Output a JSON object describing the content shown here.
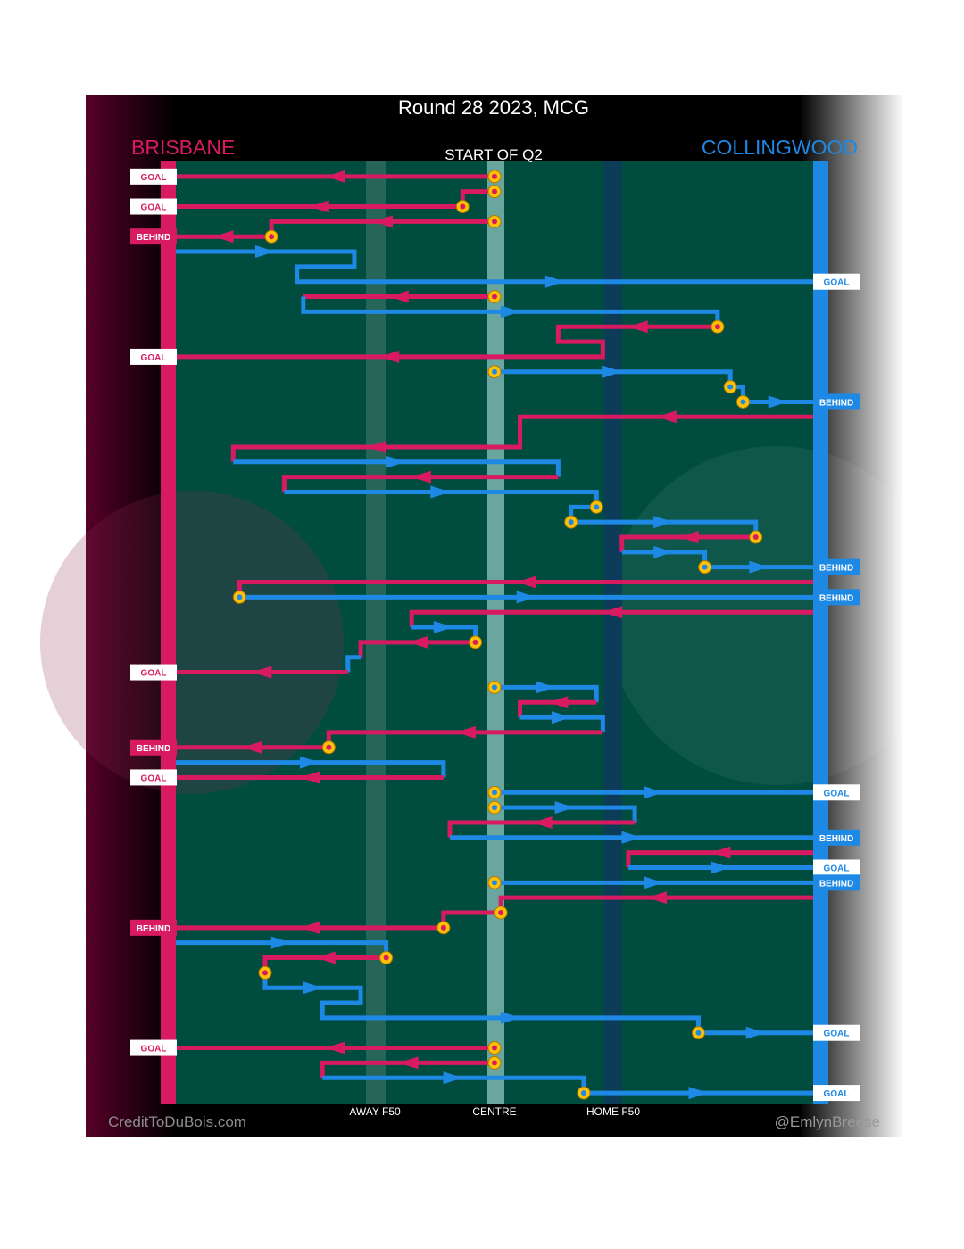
{
  "chart_data": {
    "type": "flow",
    "title": "Round 28 2023, MCG",
    "subtitle": "START OF Q2",
    "teams": {
      "away": {
        "name": "BRISBANE",
        "color": "#d81b60"
      },
      "home": {
        "name": "COLLINGWOOD",
        "color": "#1e88e5"
      }
    },
    "colors": {
      "field": "#004d40",
      "band": "#69a6a0",
      "point": "#ffc107"
    },
    "x_axis": {
      "range": [
        0,
        100
      ],
      "ticks": [
        {
          "label": "AWAY F50",
          "value": 30
        },
        {
          "label": "CENTRE",
          "value": 50
        },
        {
          "label": "HOME F50",
          "value": 67
        }
      ]
    },
    "credits": {
      "left": "CreditToDuBois.com",
      "right": "@EmlynBreese"
    },
    "chains": [
      {
        "team": "away",
        "pts": [
          [
            50,
            1
          ],
          [
            0,
            1
          ]
        ],
        "dots": [
          [
            50,
            1
          ]
        ]
      },
      {
        "team": "away",
        "pts": [
          [
            50,
            2
          ],
          [
            45,
            2
          ],
          [
            45,
            3
          ],
          [
            0,
            3
          ]
        ],
        "dots": [
          [
            50,
            2
          ],
          [
            45,
            3
          ]
        ]
      },
      {
        "team": "away",
        "pts": [
          [
            50,
            4
          ],
          [
            15,
            4
          ],
          [
            15,
            5
          ],
          [
            0,
            5
          ]
        ],
        "dots": [
          [
            50,
            4
          ],
          [
            15,
            5
          ]
        ]
      },
      {
        "team": "home",
        "pts": [
          [
            0,
            6
          ],
          [
            28,
            6
          ],
          [
            28,
            7
          ],
          [
            19,
            7
          ],
          [
            19,
            8
          ],
          [
            100,
            8
          ]
        ],
        "dots": []
      },
      {
        "team": "away",
        "pts": [
          [
            50,
            9
          ],
          [
            20,
            9
          ]
        ],
        "dots": [
          [
            50,
            9
          ]
        ]
      },
      {
        "team": "home",
        "pts": [
          [
            20,
            9
          ],
          [
            20,
            10
          ],
          [
            85,
            10
          ],
          [
            85,
            11
          ]
        ],
        "dots": []
      },
      {
        "team": "away",
        "pts": [
          [
            85,
            11
          ],
          [
            60,
            11
          ],
          [
            60,
            12
          ],
          [
            67,
            12
          ],
          [
            67,
            13
          ],
          [
            0,
            13
          ]
        ],
        "dots": [
          [
            85,
            11
          ]
        ]
      },
      {
        "team": "home",
        "pts": [
          [
            50,
            14
          ],
          [
            87,
            14
          ],
          [
            87,
            15
          ],
          [
            89,
            15
          ],
          [
            89,
            16
          ],
          [
            100,
            16
          ]
        ],
        "dots": [
          [
            50,
            14
          ],
          [
            87,
            15
          ],
          [
            89,
            16
          ]
        ]
      },
      {
        "team": "away",
        "pts": [
          [
            100,
            17
          ],
          [
            54,
            17
          ],
          [
            54,
            19
          ],
          [
            9,
            19
          ],
          [
            9,
            20
          ]
        ],
        "dots": []
      },
      {
        "team": "home",
        "pts": [
          [
            9,
            20
          ],
          [
            60,
            20
          ],
          [
            60,
            21
          ]
        ],
        "dots": []
      },
      {
        "team": "away",
        "pts": [
          [
            60,
            21
          ],
          [
            17,
            21
          ],
          [
            17,
            22
          ]
        ],
        "dots": []
      },
      {
        "team": "home",
        "pts": [
          [
            17,
            22
          ],
          [
            66,
            22
          ],
          [
            66,
            23
          ],
          [
            62,
            23
          ],
          [
            62,
            24
          ],
          [
            91,
            24
          ],
          [
            91,
            25
          ]
        ],
        "dots": [
          [
            66,
            23
          ],
          [
            62,
            24
          ]
        ]
      },
      {
        "team": "away",
        "pts": [
          [
            91,
            25
          ],
          [
            70,
            25
          ],
          [
            70,
            26
          ]
        ],
        "dots": [
          [
            91,
            25
          ]
        ]
      },
      {
        "team": "home",
        "pts": [
          [
            70,
            26
          ],
          [
            83,
            26
          ],
          [
            83,
            27
          ],
          [
            100,
            27
          ]
        ],
        "dots": [
          [
            83,
            27
          ]
        ]
      },
      {
        "team": "away",
        "pts": [
          [
            100,
            28
          ],
          [
            10,
            28
          ],
          [
            10,
            29
          ]
        ],
        "dots": []
      },
      {
        "team": "home",
        "pts": [
          [
            10,
            29
          ],
          [
            100,
            29
          ]
        ],
        "dots": [
          [
            10,
            29
          ]
        ]
      },
      {
        "team": "away",
        "pts": [
          [
            100,
            30
          ],
          [
            37,
            30
          ],
          [
            37,
            31
          ]
        ],
        "dots": []
      },
      {
        "team": "home",
        "pts": [
          [
            37,
            31
          ],
          [
            47,
            31
          ],
          [
            47,
            32
          ]
        ],
        "dots": []
      },
      {
        "team": "away",
        "pts": [
          [
            47,
            32
          ],
          [
            29,
            32
          ],
          [
            29,
            33
          ]
        ],
        "dots": [
          [
            47,
            32
          ]
        ]
      },
      {
        "team": "home",
        "pts": [
          [
            29,
            33
          ],
          [
            27,
            33
          ],
          [
            27,
            34
          ]
        ],
        "dots": []
      },
      {
        "team": "away",
        "pts": [
          [
            27,
            34
          ],
          [
            0,
            34
          ]
        ],
        "dots": []
      },
      {
        "team": "home",
        "pts": [
          [
            50,
            35
          ],
          [
            66,
            35
          ],
          [
            66,
            36
          ]
        ],
        "dots": [
          [
            50,
            35
          ]
        ]
      },
      {
        "team": "away",
        "pts": [
          [
            66,
            36
          ],
          [
            54,
            36
          ],
          [
            54,
            37
          ]
        ],
        "dots": []
      },
      {
        "team": "home",
        "pts": [
          [
            54,
            37
          ],
          [
            67,
            37
          ],
          [
            67,
            38
          ]
        ],
        "dots": []
      },
      {
        "team": "away",
        "pts": [
          [
            67,
            38
          ],
          [
            24,
            38
          ],
          [
            24,
            39
          ],
          [
            0,
            39
          ]
        ],
        "dots": [
          [
            24,
            39
          ]
        ]
      },
      {
        "team": "home",
        "pts": [
          [
            0,
            40
          ],
          [
            42,
            40
          ],
          [
            42,
            41
          ]
        ],
        "dots": []
      },
      {
        "team": "away",
        "pts": [
          [
            42,
            41
          ],
          [
            0,
            41
          ]
        ],
        "dots": []
      },
      {
        "team": "home",
        "pts": [
          [
            50,
            42
          ],
          [
            100,
            42
          ]
        ],
        "dots": [
          [
            50,
            42
          ]
        ]
      },
      {
        "team": "home",
        "pts": [
          [
            50,
            43
          ],
          [
            72,
            43
          ],
          [
            72,
            44
          ]
        ],
        "dots": [
          [
            50,
            43
          ]
        ]
      },
      {
        "team": "away",
        "pts": [
          [
            72,
            44
          ],
          [
            43,
            44
          ],
          [
            43,
            45
          ]
        ],
        "dots": []
      },
      {
        "team": "home",
        "pts": [
          [
            43,
            45
          ],
          [
            100,
            45
          ]
        ],
        "dots": []
      },
      {
        "team": "away",
        "pts": [
          [
            100,
            46
          ],
          [
            71,
            46
          ],
          [
            71,
            47
          ]
        ],
        "dots": []
      },
      {
        "team": "home",
        "pts": [
          [
            71,
            47
          ],
          [
            100,
            47
          ]
        ],
        "dots": []
      },
      {
        "team": "home",
        "pts": [
          [
            50,
            48
          ],
          [
            100,
            48
          ]
        ],
        "dots": [
          [
            50,
            48
          ]
        ]
      },
      {
        "team": "away",
        "pts": [
          [
            100,
            49
          ],
          [
            51,
            49
          ],
          [
            51,
            50
          ],
          [
            42,
            50
          ],
          [
            42,
            51
          ],
          [
            0,
            51
          ]
        ],
        "dots": [
          [
            51,
            50
          ],
          [
            42,
            51
          ]
        ]
      },
      {
        "team": "home",
        "pts": [
          [
            0,
            52
          ],
          [
            33,
            52
          ],
          [
            33,
            53
          ]
        ],
        "dots": []
      },
      {
        "team": "away",
        "pts": [
          [
            33,
            53
          ],
          [
            14,
            53
          ],
          [
            14,
            54
          ]
        ],
        "dots": [
          [
            33,
            53
          ],
          [
            14,
            54
          ]
        ]
      },
      {
        "team": "home",
        "pts": [
          [
            14,
            54
          ],
          [
            14,
            55
          ],
          [
            29,
            55
          ],
          [
            29,
            56
          ],
          [
            23,
            56
          ],
          [
            23,
            57
          ],
          [
            82,
            57
          ],
          [
            82,
            58
          ],
          [
            100,
            58
          ]
        ],
        "dots": [
          [
            82,
            58
          ]
        ]
      },
      {
        "team": "away",
        "pts": [
          [
            50,
            59
          ],
          [
            0,
            59
          ]
        ],
        "dots": [
          [
            50,
            59
          ]
        ]
      },
      {
        "team": "away",
        "pts": [
          [
            50,
            60
          ],
          [
            23,
            60
          ],
          [
            23,
            61
          ]
        ],
        "dots": [
          [
            50,
            60
          ]
        ]
      },
      {
        "team": "home",
        "pts": [
          [
            23,
            61
          ],
          [
            64,
            61
          ],
          [
            64,
            62
          ],
          [
            100,
            62
          ]
        ],
        "dots": [
          [
            64,
            62
          ]
        ]
      }
    ],
    "outcomes": [
      {
        "team": "away",
        "label": "GOAL",
        "row": 1
      },
      {
        "team": "away",
        "label": "GOAL",
        "row": 3
      },
      {
        "team": "away",
        "label": "BEHIND",
        "row": 5
      },
      {
        "team": "home",
        "label": "GOAL",
        "row": 8
      },
      {
        "team": "away",
        "label": "GOAL",
        "row": 13
      },
      {
        "team": "home",
        "label": "BEHIND",
        "row": 16
      },
      {
        "team": "home",
        "label": "BEHIND",
        "row": 27
      },
      {
        "team": "home",
        "label": "BEHIND",
        "row": 29
      },
      {
        "team": "away",
        "label": "GOAL",
        "row": 34
      },
      {
        "team": "away",
        "label": "BEHIND",
        "row": 39
      },
      {
        "team": "away",
        "label": "GOAL",
        "row": 41
      },
      {
        "team": "home",
        "label": "GOAL",
        "row": 42
      },
      {
        "team": "home",
        "label": "BEHIND",
        "row": 45
      },
      {
        "team": "home",
        "label": "GOAL",
        "row": 47
      },
      {
        "team": "home",
        "label": "BEHIND",
        "row": 48
      },
      {
        "team": "away",
        "label": "BEHIND",
        "row": 51
      },
      {
        "team": "home",
        "label": "GOAL",
        "row": 58
      },
      {
        "team": "away",
        "label": "GOAL",
        "row": 59
      },
      {
        "team": "home",
        "label": "GOAL",
        "row": 62
      }
    ]
  }
}
